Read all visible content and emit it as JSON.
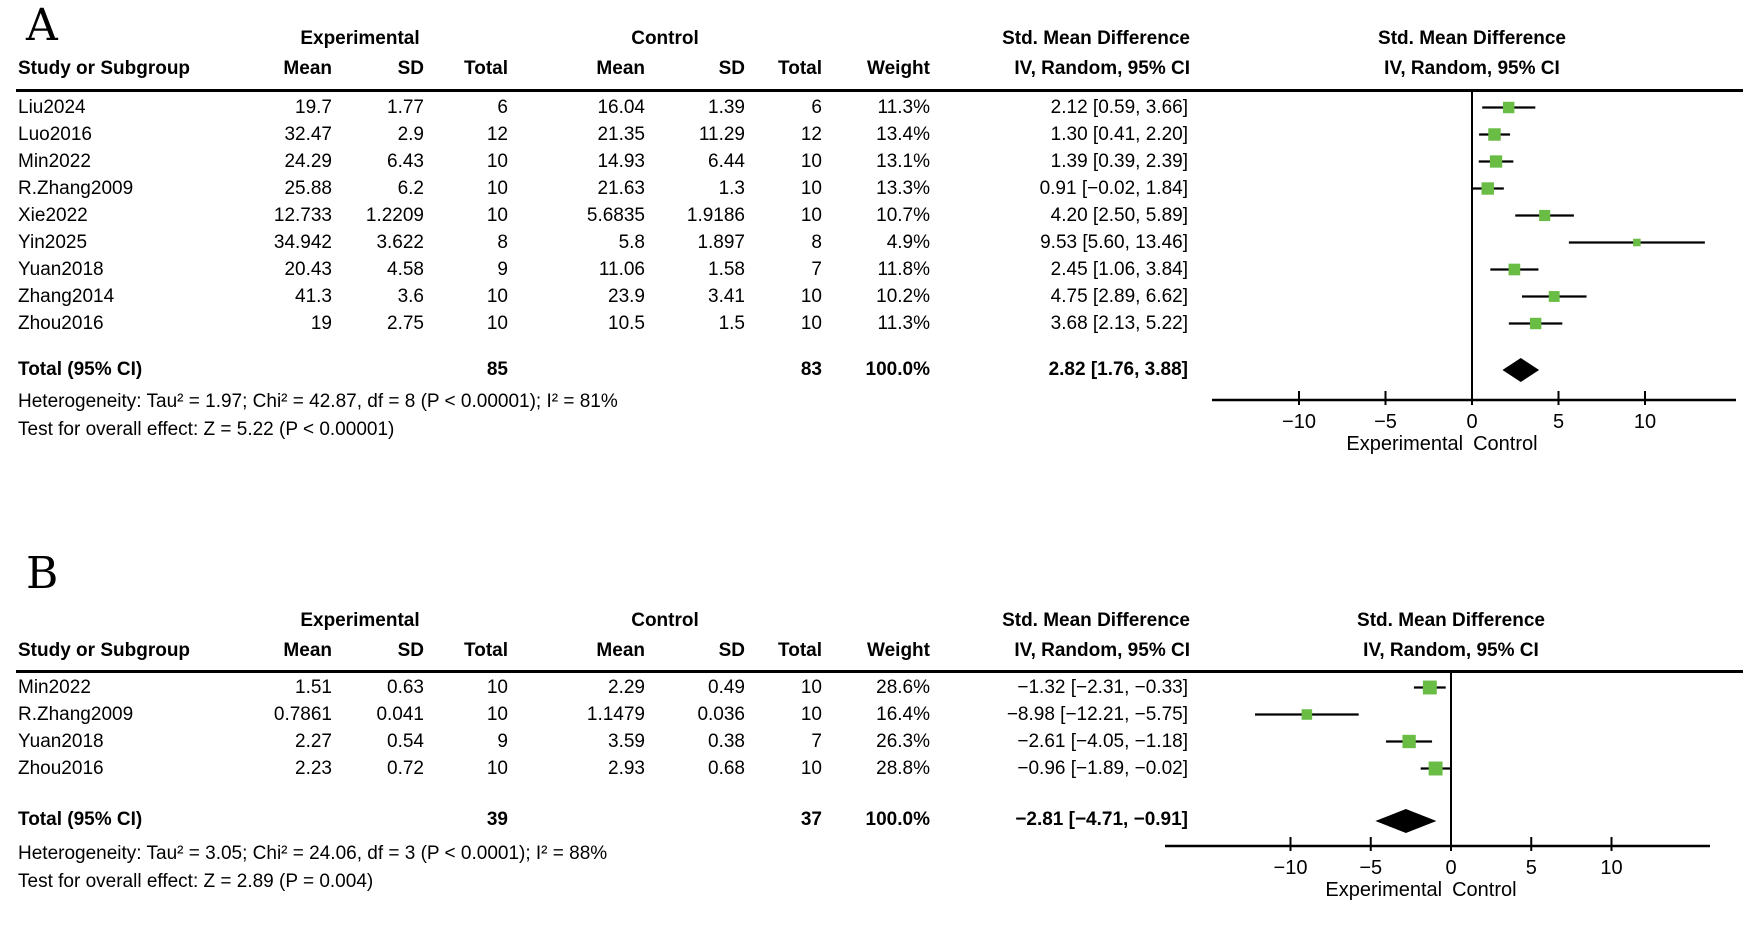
{
  "style": {
    "marker_green": "#69bd45",
    "line_color": "#000000",
    "diamond_color": "#000000",
    "background": "#ffffff"
  },
  "table_headers": {
    "group_experimental": "Experimental",
    "group_control": "Control",
    "smd": "Std. Mean Difference",
    "study": "Study or Subgroup",
    "mean": "Mean",
    "sd": "SD",
    "total": "Total",
    "weight": "Weight",
    "ci_method": "IV, Random, 95% CI"
  },
  "panels": [
    {
      "label": "A",
      "rows": [
        {
          "study": "Liu2024",
          "exp_mean": "19.7",
          "exp_sd": "1.77",
          "exp_total": "6",
          "ctl_mean": "16.04",
          "ctl_sd": "1.39",
          "ctl_total": "6",
          "weight": "11.3%",
          "ci_text": "2.12 [0.59, 3.66]"
        },
        {
          "study": "Luo2016",
          "exp_mean": "32.47",
          "exp_sd": "2.9",
          "exp_total": "12",
          "ctl_mean": "21.35",
          "ctl_sd": "11.29",
          "ctl_total": "12",
          "weight": "13.4%",
          "ci_text": "1.30 [0.41, 2.20]"
        },
        {
          "study": "Min2022",
          "exp_mean": "24.29",
          "exp_sd": "6.43",
          "exp_total": "10",
          "ctl_mean": "14.93",
          "ctl_sd": "6.44",
          "ctl_total": "10",
          "weight": "13.1%",
          "ci_text": "1.39 [0.39, 2.39]"
        },
        {
          "study": "R.Zhang2009",
          "exp_mean": "25.88",
          "exp_sd": "6.2",
          "exp_total": "10",
          "ctl_mean": "21.63",
          "ctl_sd": "1.3",
          "ctl_total": "10",
          "weight": "13.3%",
          "ci_text": "0.91 [−0.02, 1.84]"
        },
        {
          "study": "Xie2022",
          "exp_mean": "12.733",
          "exp_sd": "1.2209",
          "exp_total": "10",
          "ctl_mean": "5.6835",
          "ctl_sd": "1.9186",
          "ctl_total": "10",
          "weight": "10.7%",
          "ci_text": "4.20 [2.50, 5.89]"
        },
        {
          "study": "Yin2025",
          "exp_mean": "34.942",
          "exp_sd": "3.622",
          "exp_total": "8",
          "ctl_mean": "5.8",
          "ctl_sd": "1.897",
          "ctl_total": "8",
          "weight": "4.9%",
          "ci_text": "9.53 [5.60, 13.46]"
        },
        {
          "study": "Yuan2018",
          "exp_mean": "20.43",
          "exp_sd": "4.58",
          "exp_total": "9",
          "ctl_mean": "11.06",
          "ctl_sd": "1.58",
          "ctl_total": "7",
          "weight": "11.8%",
          "ci_text": "2.45 [1.06, 3.84]"
        },
        {
          "study": "Zhang2014",
          "exp_mean": "41.3",
          "exp_sd": "3.6",
          "exp_total": "10",
          "ctl_mean": "23.9",
          "ctl_sd": "3.41",
          "ctl_total": "10",
          "weight": "10.2%",
          "ci_text": "4.75 [2.89, 6.62]"
        },
        {
          "study": "Zhou2016",
          "exp_mean": "19",
          "exp_sd": "2.75",
          "exp_total": "10",
          "ctl_mean": "10.5",
          "ctl_sd": "1.5",
          "ctl_total": "10",
          "weight": "11.3%",
          "ci_text": "3.68 [2.13, 5.22]"
        }
      ],
      "total_row": {
        "label": "Total (95% CI)",
        "exp_total": "85",
        "ctl_total": "83",
        "weight": "100.0%",
        "ci_text": "2.82 [1.76, 3.88]"
      },
      "heterogeneity": "Heterogeneity: Tau² = 1.97; Chi² = 42.87, df = 8 (P < 0.00001); I² = 81%",
      "overall_effect": "Test for overall effect: Z = 5.22 (P < 0.00001)"
    },
    {
      "label": "B",
      "rows": [
        {
          "study": "Min2022",
          "exp_mean": "1.51",
          "exp_sd": "0.63",
          "exp_total": "10",
          "ctl_mean": "2.29",
          "ctl_sd": "0.49",
          "ctl_total": "10",
          "weight": "28.6%",
          "ci_text": "−1.32 [−2.31, −0.33]"
        },
        {
          "study": "R.Zhang2009",
          "exp_mean": "0.7861",
          "exp_sd": "0.041",
          "exp_total": "10",
          "ctl_mean": "1.1479",
          "ctl_sd": "0.036",
          "ctl_total": "10",
          "weight": "16.4%",
          "ci_text": "−8.98 [−12.21, −5.75]"
        },
        {
          "study": "Yuan2018",
          "exp_mean": "2.27",
          "exp_sd": "0.54",
          "exp_total": "9",
          "ctl_mean": "3.59",
          "ctl_sd": "0.38",
          "ctl_total": "7",
          "weight": "26.3%",
          "ci_text": "−2.61 [−4.05, −1.18]"
        },
        {
          "study": "Zhou2016",
          "exp_mean": "2.23",
          "exp_sd": "0.72",
          "exp_total": "10",
          "ctl_mean": "2.93",
          "ctl_sd": "0.68",
          "ctl_total": "10",
          "weight": "28.8%",
          "ci_text": "−0.96 [−1.89, −0.02]"
        }
      ],
      "total_row": {
        "label": "Total (95% CI)",
        "exp_total": "39",
        "ctl_total": "37",
        "weight": "100.0%",
        "ci_text": "−2.81 [−4.71, −0.91]"
      },
      "heterogeneity": "Heterogeneity: Tau² = 3.05; Chi² = 24.06, df = 3 (P < 0.0001); I² = 88%",
      "overall_effect": "Test for overall effect: Z = 2.89 (P = 0.004)"
    }
  ],
  "chart_data": [
    {
      "type": "forest",
      "panel": "A",
      "effect_measure": "Std. Mean Difference",
      "model": "IV, Random, 95% CI",
      "x_ticks": [
        -10,
        -5,
        0,
        5,
        10
      ],
      "xlim": [
        -15,
        15.3
      ],
      "axis_labels": {
        "left": "Experimental",
        "right": "Control"
      },
      "studies": [
        {
          "name": "Liu2024",
          "smd": 2.12,
          "ci": [
            0.59,
            3.66
          ],
          "weight": 11.3
        },
        {
          "name": "Luo2016",
          "smd": 1.3,
          "ci": [
            0.41,
            2.2
          ],
          "weight": 13.4
        },
        {
          "name": "Min2022",
          "smd": 1.39,
          "ci": [
            0.39,
            2.39
          ],
          "weight": 13.1
        },
        {
          "name": "R.Zhang2009",
          "smd": 0.91,
          "ci": [
            -0.02,
            1.84
          ],
          "weight": 13.3
        },
        {
          "name": "Xie2022",
          "smd": 4.2,
          "ci": [
            2.5,
            5.89
          ],
          "weight": 10.7
        },
        {
          "name": "Yin2025",
          "smd": 9.53,
          "ci": [
            5.6,
            13.46
          ],
          "weight": 4.9
        },
        {
          "name": "Yuan2018",
          "smd": 2.45,
          "ci": [
            1.06,
            3.84
          ],
          "weight": 11.8
        },
        {
          "name": "Zhang2014",
          "smd": 4.75,
          "ci": [
            2.89,
            6.62
          ],
          "weight": 10.2
        },
        {
          "name": "Zhou2016",
          "smd": 3.68,
          "ci": [
            2.13,
            5.22
          ],
          "weight": 11.3
        }
      ],
      "total": {
        "name": "Total (95% CI)",
        "smd": 2.82,
        "ci": [
          1.76,
          3.88
        ]
      }
    },
    {
      "type": "forest",
      "panel": "B",
      "effect_measure": "Std. Mean Difference",
      "model": "IV, Random, 95% CI",
      "x_ticks": [
        -10,
        -5,
        0,
        5,
        10
      ],
      "xlim": [
        -17.8,
        16.1
      ],
      "axis_labels": {
        "left": "Experimental",
        "right": "Control"
      },
      "studies": [
        {
          "name": "Min2022",
          "smd": -1.32,
          "ci": [
            -2.31,
            -0.33
          ],
          "weight": 28.6
        },
        {
          "name": "R.Zhang2009",
          "smd": -8.98,
          "ci": [
            -12.21,
            -5.75
          ],
          "weight": 16.4
        },
        {
          "name": "Yuan2018",
          "smd": -2.61,
          "ci": [
            -4.05,
            -1.18
          ],
          "weight": 26.3
        },
        {
          "name": "Zhou2016",
          "smd": -0.96,
          "ci": [
            -1.89,
            -0.02
          ],
          "weight": 28.8
        }
      ],
      "total": {
        "name": "Total (95% CI)",
        "smd": -2.81,
        "ci": [
          -4.71,
          -0.91
        ]
      }
    }
  ]
}
